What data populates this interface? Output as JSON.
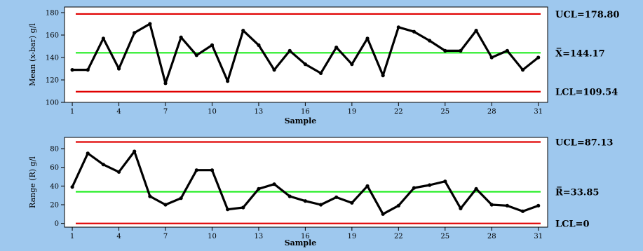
{
  "chart_data": [
    {
      "type": "line",
      "title": "",
      "ylabel": "Mean (x-bar) g/l",
      "xlabel": "Sample",
      "ylim": [
        100,
        185
      ],
      "yticks": [
        100,
        120,
        140,
        160,
        180
      ],
      "xticks": [
        1,
        4,
        7,
        10,
        13,
        16,
        19,
        22,
        25,
        28,
        31
      ],
      "x": [
        1,
        2,
        3,
        4,
        5,
        6,
        7,
        8,
        9,
        10,
        11,
        12,
        13,
        14,
        15,
        16,
        17,
        18,
        19,
        20,
        21,
        22,
        23,
        24,
        25,
        26,
        27,
        28,
        29,
        30,
        31
      ],
      "series": [
        {
          "values": [
            129,
            129,
            157,
            130,
            162,
            170,
            117,
            158,
            142,
            151,
            119,
            164,
            151,
            129,
            146,
            134,
            126,
            149,
            134,
            157,
            124,
            167,
            163,
            155,
            146,
            146,
            164,
            140,
            146,
            129,
            140
          ]
        }
      ],
      "limits": [
        {
          "label": "UCL=178.80",
          "value": 178.8,
          "color": "#e00000"
        },
        {
          "label": "X̅=144.17",
          "value": 144.17,
          "color": "#22ee22"
        },
        {
          "label": "LCL=109.54",
          "value": 109.54,
          "color": "#e00000"
        }
      ],
      "line_color": "#000000"
    },
    {
      "type": "line",
      "title": "",
      "ylabel": "Range (R) g/l",
      "xlabel": "Sample",
      "ylim": [
        -4,
        92
      ],
      "yticks": [
        0,
        20,
        40,
        60,
        80
      ],
      "xticks": [
        1,
        4,
        7,
        10,
        13,
        16,
        19,
        22,
        25,
        28,
        31
      ],
      "x": [
        1,
        2,
        3,
        4,
        5,
        6,
        7,
        8,
        9,
        10,
        11,
        12,
        13,
        14,
        15,
        16,
        17,
        18,
        19,
        20,
        21,
        22,
        23,
        24,
        25,
        26,
        27,
        28,
        29,
        30,
        31
      ],
      "series": [
        {
          "values": [
            39,
            75,
            63,
            55,
            77,
            29,
            20,
            27,
            57,
            57,
            15,
            17,
            37,
            42,
            29,
            24,
            20,
            28,
            22,
            40,
            10,
            19,
            38,
            41,
            45,
            16,
            37,
            20,
            19,
            13,
            19
          ]
        }
      ],
      "limits": [
        {
          "label": "UCL=87.13",
          "value": 87.13,
          "color": "#e00000"
        },
        {
          "label": "R̅=33.85",
          "value": 33.85,
          "color": "#22ee22"
        },
        {
          "label": "LCL=0",
          "value": 0,
          "color": "#e00000"
        }
      ],
      "line_color": "#000000"
    }
  ]
}
